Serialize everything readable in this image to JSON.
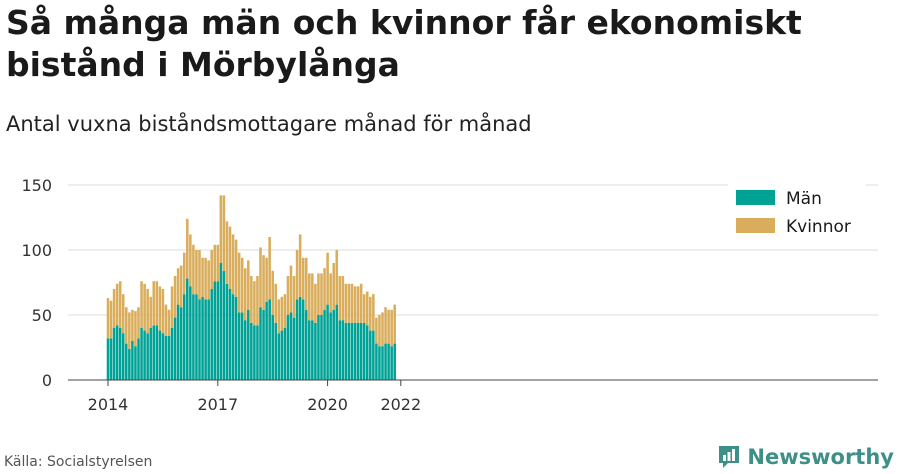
{
  "title": "Så många män och kvinnor får ekonomiskt bistånd i Mörbylånga",
  "subtitle": "Antal vuxna biståndsmottagare månad för månad",
  "source": "Källa: Socialstyrelsen",
  "brand": {
    "name": "Newsworthy",
    "icon": "newsworthy-logo-icon"
  },
  "colors": {
    "men": "#00a296",
    "women": "#d9ad5b",
    "grid": "#dddddd",
    "axis": "#444444"
  },
  "chart_data": {
    "type": "bar",
    "stacked": true,
    "x_start": "2014-01",
    "xticks": [
      "2014",
      "2017",
      "2020",
      "2022"
    ],
    "yticks": [
      0,
      50,
      100,
      150
    ],
    "ylim": [
      0,
      150
    ],
    "legend_position": "top-right",
    "grid": true,
    "series": [
      {
        "name": "Män",
        "values": [
          32,
          32,
          40,
          42,
          40,
          36,
          28,
          24,
          30,
          26,
          32,
          40,
          38,
          36,
          40,
          42,
          42,
          38,
          36,
          34,
          34,
          40,
          48,
          58,
          56,
          66,
          78,
          72,
          66,
          66,
          62,
          64,
          62,
          62,
          70,
          76,
          76,
          90,
          84,
          74,
          70,
          66,
          64,
          52,
          52,
          46,
          54,
          44,
          42,
          42,
          56,
          54,
          60,
          62,
          50,
          44,
          36,
          38,
          40,
          50,
          52,
          48,
          62,
          64,
          62,
          54,
          46,
          46,
          44,
          50,
          50,
          54,
          58,
          52,
          54,
          58,
          46,
          46,
          44,
          44,
          44,
          44,
          44,
          44,
          44,
          42,
          38,
          38,
          28,
          26,
          26,
          28,
          28,
          26,
          28
        ]
      },
      {
        "name": "Kvinnor",
        "values": [
          31,
          29,
          30,
          32,
          36,
          30,
          28,
          28,
          24,
          27,
          24,
          36,
          36,
          34,
          24,
          34,
          34,
          34,
          34,
          24,
          20,
          32,
          32,
          28,
          32,
          32,
          46,
          40,
          38,
          34,
          38,
          30,
          32,
          30,
          30,
          28,
          28,
          52,
          58,
          48,
          48,
          46,
          44,
          46,
          42,
          40,
          38,
          36,
          34,
          38,
          46,
          42,
          34,
          48,
          34,
          30,
          26,
          26,
          26,
          30,
          36,
          32,
          38,
          48,
          32,
          40,
          36,
          36,
          30,
          32,
          32,
          32,
          40,
          30,
          36,
          42,
          34,
          34,
          30,
          30,
          30,
          28,
          28,
          30,
          22,
          26,
          26,
          28,
          20,
          24,
          26,
          28,
          26,
          28,
          30
        ]
      }
    ]
  }
}
